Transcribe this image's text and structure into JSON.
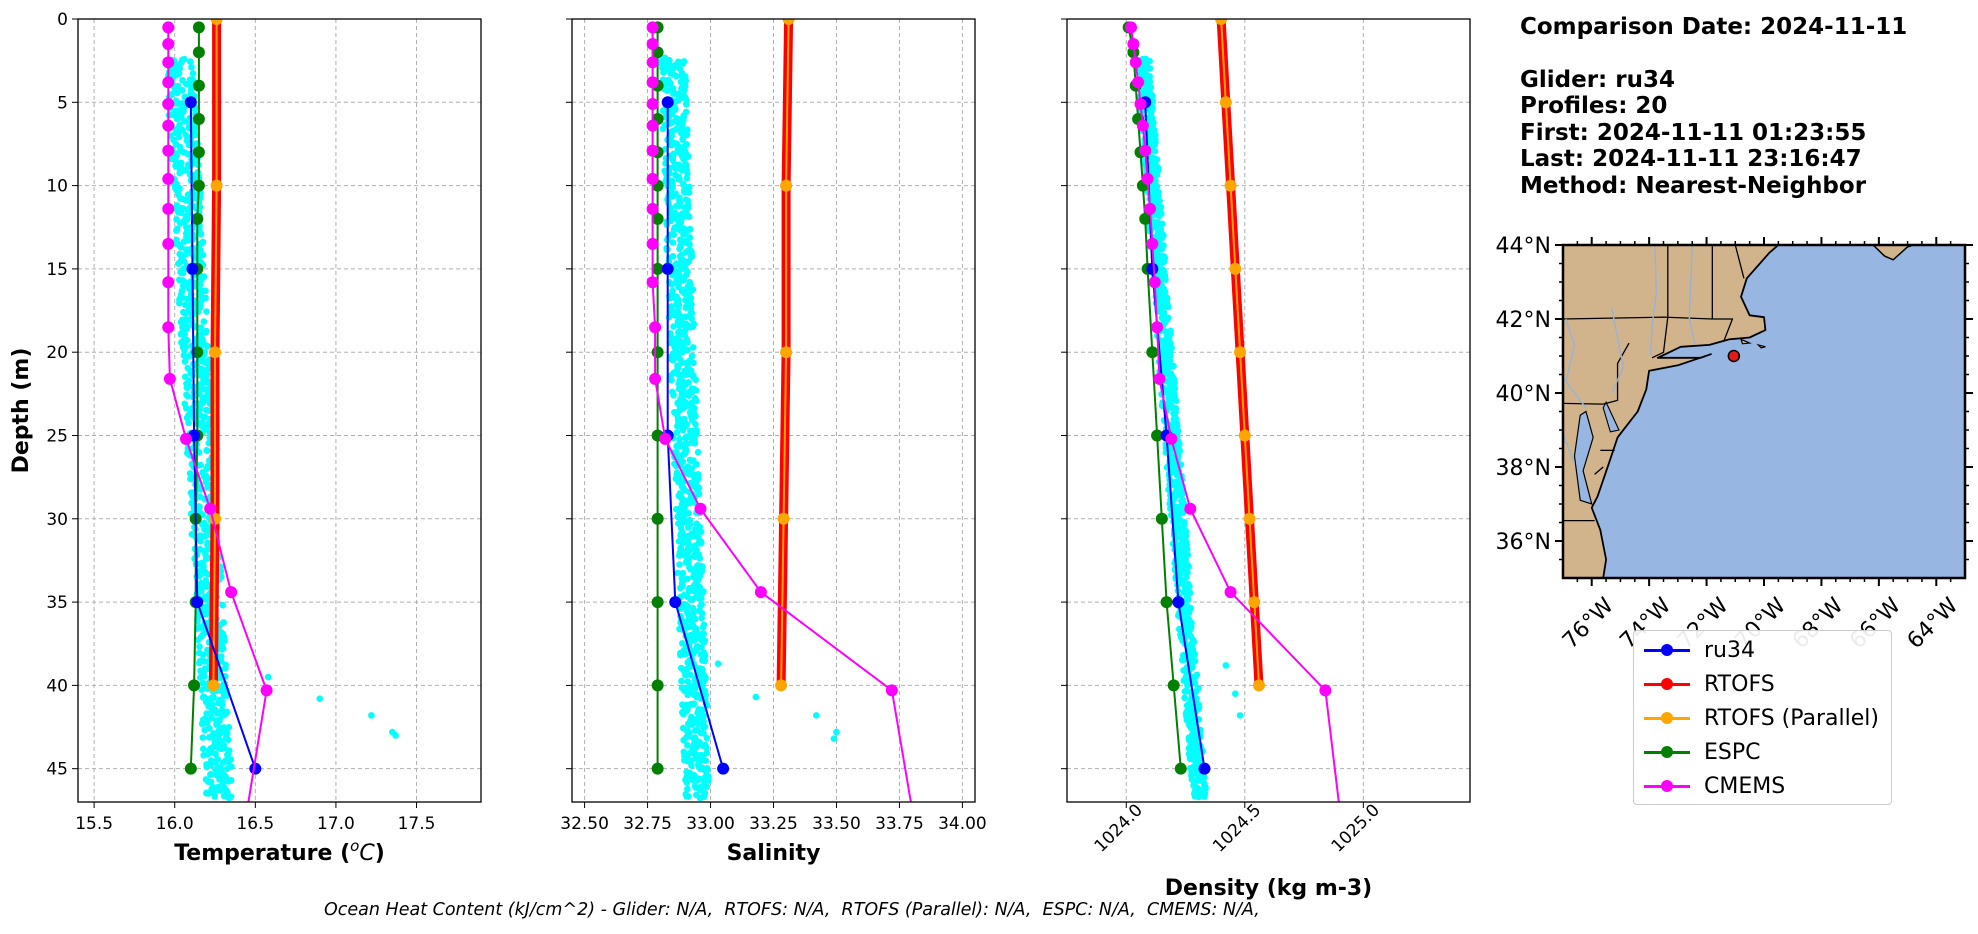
{
  "info": {
    "comparison_date": "Comparison Date: 2024-11-11",
    "glider": "Glider: ru34",
    "profiles": "Profiles: 20",
    "first": "First: 2024-11-11 01:23:55",
    "last": "Last: 2024-11-11 23:16:47",
    "method": "Method: Nearest-Neighbor"
  },
  "footer": "Ocean Heat Content (kJ/cm^2) - Glider: N/A,  RTOFS: N/A,  RTOFS (Parallel): N/A,  ESPC: N/A,  CMEMS: N/A,",
  "legend": [
    {
      "label": "ru34",
      "color": "#0000ff"
    },
    {
      "label": "RTOFS",
      "color": "#ff0000"
    },
    {
      "label": "RTOFS (Parallel)",
      "color": "#ffa500"
    },
    {
      "label": "ESPC",
      "color": "#008000"
    },
    {
      "label": "CMEMS",
      "color": "#ff00ff"
    }
  ],
  "colors": {
    "glider_scatter": "#00ffff",
    "land": "#d2b48c",
    "ocean": "#97b6e1",
    "rivers": "#9ab3d0"
  },
  "chart_data": [
    {
      "type": "line",
      "xlabel": "Temperature ($^oC$)",
      "ylabel": "Depth (m)",
      "xlim": [
        15.4,
        17.9
      ],
      "ylim": [
        47,
        0
      ],
      "x_ticks": [
        "15.5",
        "16.0",
        "16.5",
        "17.0",
        "17.5"
      ],
      "y_ticks": [
        "0",
        "5",
        "10",
        "15",
        "20",
        "25",
        "30",
        "35",
        "40",
        "45"
      ],
      "grid": true,
      "scatter_range": {
        "depth_from": 2.5,
        "depth_to": 47,
        "x_center_top": 16.03,
        "x_center_bottom": 16.28,
        "width": 0.17,
        "outliers": [
          [
            16.58,
            39.5
          ],
          [
            16.9,
            40.8
          ],
          [
            17.22,
            41.8
          ],
          [
            17.35,
            42.8
          ],
          [
            17.37,
            43.0
          ]
        ]
      },
      "series": [
        {
          "name": "ru34",
          "depth": [
            5,
            15,
            25,
            35,
            45
          ],
          "values": [
            16.1,
            16.11,
            16.12,
            16.14,
            16.5
          ]
        },
        {
          "name": "RTOFS",
          "depth": [
            0,
            10,
            20,
            30,
            40
          ],
          "values": [
            16.26,
            16.26,
            16.25,
            16.25,
            16.24
          ]
        },
        {
          "name": "ESPC",
          "depth": [
            0.5,
            2,
            4,
            6,
            8,
            10,
            12,
            15,
            20,
            25,
            30,
            35,
            40,
            45
          ],
          "values": [
            16.15,
            16.15,
            16.15,
            16.15,
            16.15,
            16.15,
            16.14,
            16.14,
            16.14,
            16.14,
            16.13,
            16.13,
            16.12,
            16.1
          ]
        },
        {
          "name": "CMEMS",
          "depth": [
            0.5,
            1.5,
            2.6,
            3.8,
            5.1,
            6.4,
            7.9,
            9.6,
            11.4,
            13.5,
            15.8,
            18.5,
            21.6,
            25.2,
            29.4,
            34.4,
            40.3,
            47.4
          ],
          "values": [
            15.96,
            15.96,
            15.96,
            15.96,
            15.96,
            15.96,
            15.96,
            15.96,
            15.96,
            15.96,
            15.96,
            15.96,
            15.97,
            16.07,
            16.22,
            16.35,
            16.57,
            16.45
          ]
        }
      ]
    },
    {
      "type": "line",
      "xlabel": "Salinity",
      "xlim": [
        32.45,
        34.05
      ],
      "ylim": [
        47,
        0
      ],
      "x_ticks": [
        "32.50",
        "32.75",
        "33.00",
        "33.25",
        "33.50",
        "33.75",
        "34.00"
      ],
      "grid": true,
      "scatter_range": {
        "depth_from": 2.5,
        "depth_to": 47,
        "x_center_top": 32.85,
        "x_center_bottom": 32.95,
        "width": 0.1,
        "outliers": [
          [
            33.03,
            38.7
          ],
          [
            33.18,
            40.7
          ],
          [
            33.42,
            41.8
          ],
          [
            33.5,
            42.8
          ],
          [
            33.49,
            43.2
          ]
        ]
      },
      "series": [
        {
          "name": "ru34",
          "depth": [
            5,
            15,
            25,
            35,
            45
          ],
          "values": [
            32.83,
            32.83,
            32.83,
            32.86,
            33.05
          ]
        },
        {
          "name": "RTOFS",
          "depth": [
            0,
            10,
            20,
            30,
            40
          ],
          "values": [
            33.31,
            33.3,
            33.3,
            33.29,
            33.28
          ]
        },
        {
          "name": "ESPC",
          "depth": [
            0.5,
            2,
            4,
            6,
            8,
            10,
            12,
            15,
            20,
            25,
            30,
            35,
            40,
            45
          ],
          "values": [
            32.79,
            32.79,
            32.79,
            32.79,
            32.79,
            32.79,
            32.79,
            32.79,
            32.79,
            32.79,
            32.79,
            32.79,
            32.79,
            32.79
          ]
        },
        {
          "name": "CMEMS",
          "depth": [
            0.5,
            1.5,
            2.6,
            3.8,
            5.1,
            6.4,
            7.9,
            9.6,
            11.4,
            13.5,
            15.8,
            18.5,
            21.6,
            25.2,
            29.4,
            34.4,
            40.3,
            47.4
          ],
          "values": [
            32.77,
            32.77,
            32.77,
            32.77,
            32.77,
            32.77,
            32.77,
            32.77,
            32.77,
            32.77,
            32.77,
            32.78,
            32.78,
            32.82,
            32.96,
            33.2,
            33.72,
            33.8
          ]
        }
      ]
    },
    {
      "type": "line",
      "xlabel": "Density (kg m-3)",
      "xlim": [
        1023.75,
        1025.45
      ],
      "ylim": [
        47,
        0
      ],
      "x_ticks": [
        "1024.0",
        "1024.5",
        "1025.0"
      ],
      "grid": true,
      "scatter_range": {
        "depth_from": 2.5,
        "depth_to": 47,
        "x_center_top": 1024.07,
        "x_center_bottom": 1024.31,
        "width": 0.06,
        "outliers": [
          [
            1024.42,
            38.8
          ],
          [
            1024.46,
            40.5
          ],
          [
            1024.48,
            41.8
          ]
        ]
      },
      "series": [
        {
          "name": "ru34",
          "depth": [
            5,
            15,
            25,
            35,
            45
          ],
          "values": [
            1024.08,
            1024.11,
            1024.17,
            1024.22,
            1024.33
          ]
        },
        {
          "name": "RTOFS",
          "depth": [
            0,
            5,
            10,
            15,
            20,
            25,
            30,
            35,
            40
          ],
          "values": [
            1024.4,
            1024.42,
            1024.44,
            1024.46,
            1024.48,
            1024.5,
            1024.52,
            1024.54,
            1024.56
          ]
        },
        {
          "name": "ESPC",
          "depth": [
            0.5,
            2,
            4,
            6,
            8,
            10,
            12,
            15,
            20,
            25,
            30,
            35,
            40,
            45
          ],
          "values": [
            1024.01,
            1024.03,
            1024.04,
            1024.05,
            1024.06,
            1024.07,
            1024.08,
            1024.09,
            1024.11,
            1024.13,
            1024.15,
            1024.17,
            1024.2,
            1024.23
          ]
        },
        {
          "name": "CMEMS",
          "depth": [
            0.5,
            1.5,
            2.6,
            3.8,
            5.1,
            6.4,
            7.9,
            9.6,
            11.4,
            13.5,
            15.8,
            18.5,
            21.6,
            25.2,
            29.4,
            34.4,
            40.3,
            47.4
          ],
          "values": [
            1024.02,
            1024.03,
            1024.04,
            1024.05,
            1024.06,
            1024.07,
            1024.08,
            1024.09,
            1024.1,
            1024.11,
            1024.12,
            1024.13,
            1024.14,
            1024.19,
            1024.27,
            1024.44,
            1024.84,
            1024.9
          ]
        }
      ]
    }
  ],
  "map": {
    "lat_ticks": [
      "44°N",
      "42°N",
      "40°N",
      "38°N",
      "36°N"
    ],
    "lon_ticks": [
      "76°W",
      "74°W",
      "72°W",
      "70°W",
      "68°W",
      "66°W",
      "64°W"
    ],
    "lat_values": [
      44,
      42,
      40,
      38,
      36
    ],
    "lon_values": [
      -76,
      -74,
      -72,
      -70,
      -68,
      -66,
      -64
    ],
    "extent": {
      "lon": [
        -77,
        -63
      ],
      "lat": [
        35,
        44
      ]
    },
    "glider_position": {
      "lon": -71.05,
      "lat": 41.0
    }
  }
}
